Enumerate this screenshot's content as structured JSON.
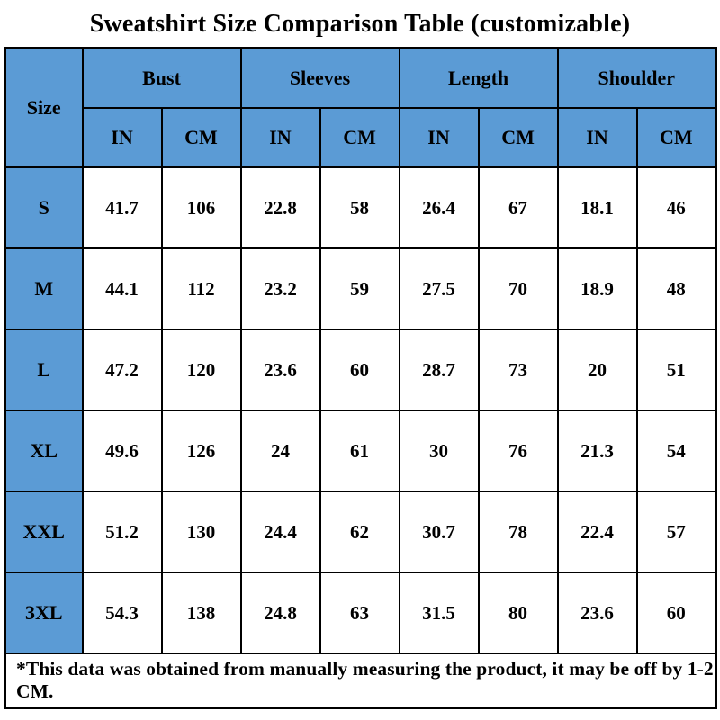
{
  "title": "Sweatshirt Size Comparison Table (customizable)",
  "colors": {
    "header_blue": "#5B9BD5",
    "border_black": "#000000",
    "cell_white": "#FFFFFF",
    "text_black": "#000000"
  },
  "table": {
    "size_header": "Size",
    "groups": [
      {
        "label": "Bust"
      },
      {
        "label": "Sleeves"
      },
      {
        "label": "Length"
      },
      {
        "label": "Shoulder"
      }
    ],
    "unit_headers": [
      "IN",
      "CM",
      "IN",
      "CM",
      "IN",
      "CM",
      "IN",
      "CM"
    ],
    "rows": [
      {
        "size": "S",
        "values": [
          "41.7",
          "106",
          "22.8",
          "58",
          "26.4",
          "67",
          "18.1",
          "46"
        ]
      },
      {
        "size": "M",
        "values": [
          "44.1",
          "112",
          "23.2",
          "59",
          "27.5",
          "70",
          "18.9",
          "48"
        ]
      },
      {
        "size": "L",
        "values": [
          "47.2",
          "120",
          "23.6",
          "60",
          "28.7",
          "73",
          "20",
          "51"
        ]
      },
      {
        "size": "XL",
        "values": [
          "49.6",
          "126",
          "24",
          "61",
          "30",
          "76",
          "21.3",
          "54"
        ]
      },
      {
        "size": "XXL",
        "values": [
          "51.2",
          "130",
          "24.4",
          "62",
          "30.7",
          "78",
          "22.4",
          "57"
        ]
      },
      {
        "size": "3XL",
        "values": [
          "54.3",
          "138",
          "24.8",
          "63",
          "31.5",
          "80",
          "23.6",
          "60"
        ]
      }
    ],
    "footnote": "*This data was obtained from manually measuring the product, it may be off by 1-2 CM."
  },
  "chart_data": {
    "type": "table",
    "title": "Sweatshirt Size Comparison Table (customizable)",
    "columns": [
      "Size",
      "Bust IN",
      "Bust CM",
      "Sleeves IN",
      "Sleeves CM",
      "Length IN",
      "Length CM",
      "Shoulder IN",
      "Shoulder CM"
    ],
    "rows": [
      [
        "S",
        41.7,
        106,
        22.8,
        58,
        26.4,
        67,
        18.1,
        46
      ],
      [
        "M",
        44.1,
        112,
        23.2,
        59,
        27.5,
        70,
        18.9,
        48
      ],
      [
        "L",
        47.2,
        120,
        23.6,
        60,
        28.7,
        73,
        20,
        51
      ],
      [
        "XL",
        49.6,
        126,
        24,
        61,
        30,
        76,
        21.3,
        54
      ],
      [
        "XXL",
        51.2,
        130,
        24.4,
        62,
        30.7,
        78,
        22.4,
        57
      ],
      [
        "3XL",
        54.3,
        138,
        24.8,
        63,
        31.5,
        80,
        23.6,
        60
      ]
    ],
    "footnote": "*This data was obtained from manually measuring the product, it may be off by 1-2 CM.",
    "layout_hints": {
      "header_fill": "#5B9BD5",
      "grid": "on",
      "units": [
        "IN",
        "CM"
      ]
    }
  }
}
